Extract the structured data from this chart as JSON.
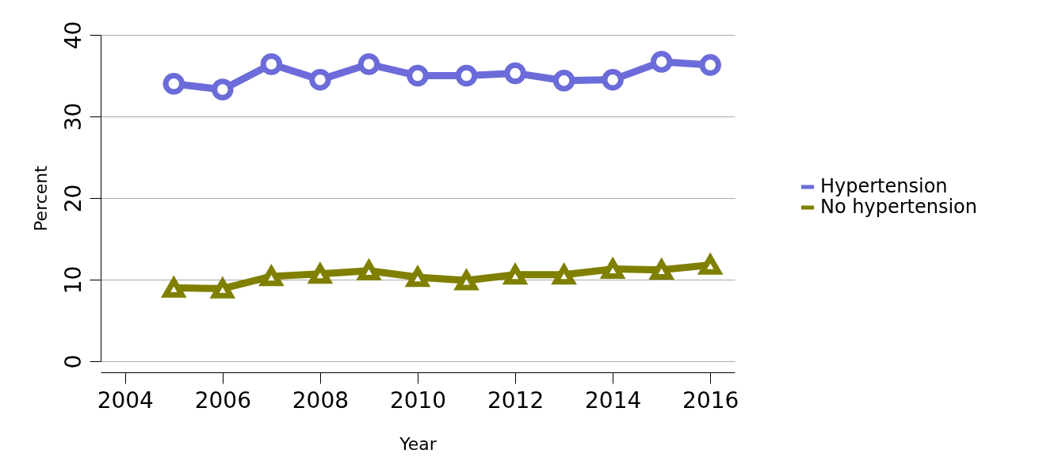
{
  "chart_data": {
    "type": "line",
    "xlabel": "Year",
    "ylabel": "Percent",
    "x": [
      2005,
      2006,
      2007,
      2008,
      2009,
      2010,
      2011,
      2012,
      2013,
      2014,
      2015,
      2016
    ],
    "series": [
      {
        "name": "Hypertension",
        "color": "#6b6bd9",
        "marker": "circle",
        "values": [
          34.0,
          33.3,
          36.4,
          34.5,
          36.4,
          35.0,
          35.0,
          35.3,
          34.4,
          34.5,
          36.7,
          36.3
        ]
      },
      {
        "name": "No hypertension",
        "color": "#7f7f00",
        "marker": "triangle",
        "values": [
          9.0,
          8.9,
          10.4,
          10.7,
          11.1,
          10.3,
          9.9,
          10.6,
          10.6,
          11.3,
          11.2,
          11.8
        ]
      }
    ],
    "xlim": [
      2003.5,
      2016.5
    ],
    "xticks": [
      2004,
      2006,
      2008,
      2010,
      2012,
      2014,
      2016
    ],
    "ylim": [
      0,
      40
    ],
    "yticks": [
      0,
      10,
      20,
      30,
      40
    ],
    "grid": "y",
    "legend": "right",
    "line_style": "solid"
  }
}
